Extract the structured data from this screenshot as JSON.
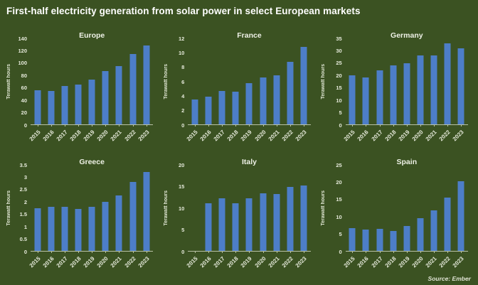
{
  "window": {
    "title": "First-half electricity generation from solar power in select European markets",
    "source": "Source: Ember"
  },
  "colors": {
    "background": "#3b5222",
    "bar": "#4d7ec8",
    "text": "#ffffff",
    "axis": "#b9c2a6"
  },
  "years": [
    "2015",
    "2016",
    "2017",
    "2018",
    "2019",
    "2020",
    "2021",
    "2022",
    "2023"
  ],
  "chart_data": [
    {
      "type": "bar",
      "title": "Europe",
      "ylabel": "Terawatt hours",
      "categories": [
        "2015",
        "2016",
        "2017",
        "2018",
        "2019",
        "2020",
        "2021",
        "2022",
        "2023"
      ],
      "values": [
        55,
        54,
        62,
        65,
        73,
        87,
        95,
        115,
        128
      ],
      "ylim": [
        0,
        140
      ],
      "yticks": [
        "0",
        "20",
        "40",
        "60",
        "80",
        "100",
        "120",
        "140"
      ],
      "grid": false,
      "legend": "none"
    },
    {
      "type": "bar",
      "title": "France",
      "ylabel": "Terawatt hours",
      "categories": [
        "2015",
        "2016",
        "2017",
        "2018",
        "2019",
        "2020",
        "2021",
        "2022",
        "2023"
      ],
      "values": [
        3.5,
        3.9,
        4.7,
        4.6,
        5.8,
        6.5,
        6.8,
        8.7,
        10.8
      ],
      "ylim": [
        0,
        12
      ],
      "yticks": [
        "0",
        "2",
        "4",
        "6",
        "8",
        "10",
        "12"
      ],
      "grid": false,
      "legend": "none"
    },
    {
      "type": "bar",
      "title": "Germany",
      "ylabel": "Terawatt hours",
      "categories": [
        "2015",
        "2016",
        "2017",
        "2018",
        "2019",
        "2020",
        "2021",
        "2022",
        "2023"
      ],
      "values": [
        20,
        19,
        22,
        24,
        25,
        28,
        28,
        33,
        31
      ],
      "ylim": [
        0,
        35
      ],
      "yticks": [
        "0",
        "5",
        "10",
        "15",
        "20",
        "25",
        "30",
        "35"
      ],
      "grid": false,
      "legend": "none"
    },
    {
      "type": "bar",
      "title": "Greece",
      "ylabel": "Terawatt hours",
      "categories": [
        "2015",
        "2016",
        "2017",
        "2018",
        "2019",
        "2020",
        "2021",
        "2022",
        "2023"
      ],
      "values": [
        1.75,
        1.8,
        1.78,
        1.7,
        1.78,
        2.0,
        2.25,
        2.8,
        3.2
      ],
      "ylim": [
        0,
        3.5
      ],
      "yticks": [
        "0",
        "0.5",
        "1",
        "1.5",
        "2",
        "2.5",
        "3",
        "3.5"
      ],
      "grid": false,
      "legend": "none"
    },
    {
      "type": "bar",
      "title": "Italy",
      "ylabel": "Terawatt hours",
      "categories": [
        "2015",
        "2016",
        "2017",
        "2018",
        "2019",
        "2020",
        "2021",
        "2022",
        "2023"
      ],
      "values": [
        null,
        11,
        12.3,
        11,
        12.2,
        13.4,
        13.3,
        14.8,
        15.2
      ],
      "ylim": [
        0,
        20
      ],
      "yticks": [
        "0",
        "5",
        "10",
        "15",
        "20"
      ],
      "grid": false,
      "legend": "none"
    },
    {
      "type": "bar",
      "title": "Spain",
      "ylabel": "Terawatt hours",
      "categories": [
        "2015",
        "2016",
        "2017",
        "2018",
        "2019",
        "2020",
        "2021",
        "2022",
        "2023"
      ],
      "values": [
        6.7,
        6.1,
        6.4,
        5.7,
        7.2,
        9.5,
        11.8,
        15.5,
        20.2
      ],
      "ylim": [
        0,
        25
      ],
      "yticks": [
        "0",
        "5",
        "10",
        "15",
        "20",
        "25"
      ],
      "grid": false,
      "legend": "none"
    }
  ]
}
